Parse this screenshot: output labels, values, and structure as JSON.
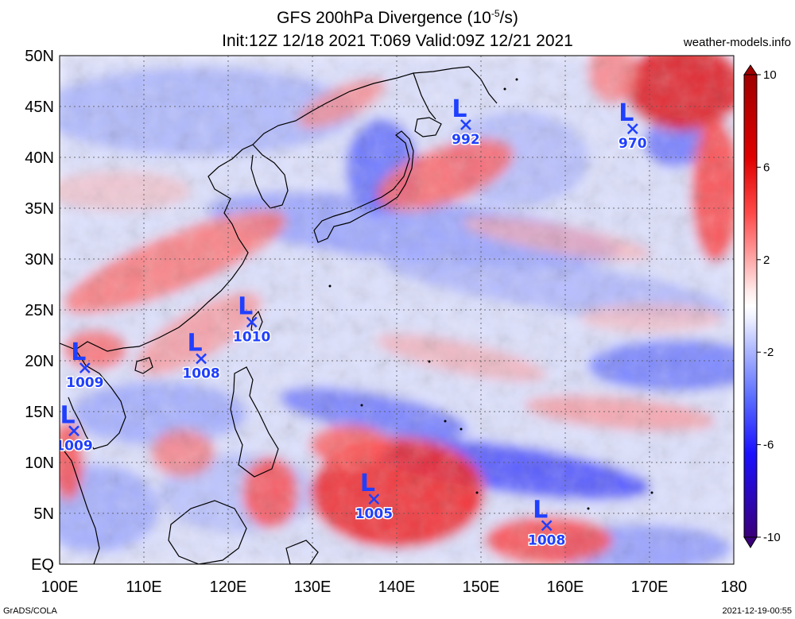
{
  "header": {
    "title_line1": "GFS 200hPa Divergence (10",
    "title_exp": "-5",
    "title_unit_tail": "/s)",
    "title_line2": "Init:12Z 12/18 2021 T:069 Valid:09Z 12/21 2021",
    "source": "weather-models.info"
  },
  "footer": {
    "left": "GrADS/COLA",
    "right": "2021-12-19-00:55"
  },
  "map": {
    "lon_range": [
      100,
      180
    ],
    "lat_range": [
      0,
      50
    ],
    "x_ticks": [
      "100E",
      "110E",
      "120E",
      "130E",
      "140E",
      "150E",
      "160E",
      "170E",
      "180"
    ],
    "y_ticks": [
      "EQ",
      "5N",
      "10N",
      "15N",
      "20N",
      "25N",
      "30N",
      "35N",
      "40N",
      "45N",
      "50N"
    ],
    "grid": true
  },
  "colorbar": {
    "ticks": [
      "10",
      "6",
      "2",
      "-2",
      "-6",
      "-10"
    ],
    "colors": [
      "#3a007a",
      "#2000ff",
      "#5a6cff",
      "#a8b4ff",
      "#e8ecff",
      "#ffffff",
      "#ffe6e6",
      "#ff9c9c",
      "#ff3a3a",
      "#d80000",
      "#a00000"
    ]
  },
  "lows": [
    {
      "lon": 148.2,
      "lat": 43.2,
      "pressure": "992"
    },
    {
      "lon": 168.0,
      "lat": 42.8,
      "pressure": "970"
    },
    {
      "lon": 122.8,
      "lat": 23.8,
      "pressure": "1010"
    },
    {
      "lon": 116.8,
      "lat": 20.2,
      "pressure": "1008"
    },
    {
      "lon": 103.0,
      "lat": 19.3,
      "pressure": "1009"
    },
    {
      "lon": 101.7,
      "lat": 13.1,
      "pressure": "1009"
    },
    {
      "lon": 137.3,
      "lat": 6.4,
      "pressure": "1005"
    },
    {
      "lon": 157.8,
      "lat": 3.8,
      "pressure": "1008"
    }
  ],
  "icons": {
    "low_marker": "cross-icon",
    "colorbar_top": "triangle-up-icon",
    "colorbar_bottom": "triangle-down-icon"
  }
}
